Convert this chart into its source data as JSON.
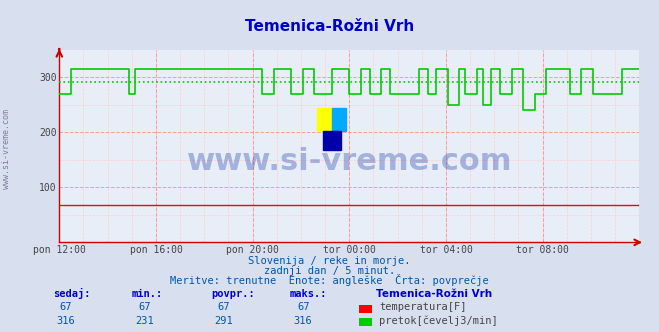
{
  "title": "Temenica-Rožni Vrh",
  "title_color": "#0000cc",
  "bg_color": "#d8e0f0",
  "plot_bg_color": "#e8eef8",
  "grid_color_major": "#ff9999",
  "grid_color_minor": "#ffcccc",
  "ylabel_color": "#444444",
  "xlabel_color": "#444444",
  "watermark_text": "www.si-vreme.com",
  "watermark_color": "#2244aa",
  "side_label": "www.si-vreme.com",
  "subtitle1": "Slovenija / reke in morje.",
  "subtitle2": "zadnji dan / 5 minut.",
  "subtitle3": "Meritve: trenutne  Enote: angleške  Črta: povprečje",
  "subtitle_color": "#0055aa",
  "x_tick_labels": [
    "pon 12:00",
    "pon 16:00",
    "pon 20:00",
    "tor 00:00",
    "tor 04:00",
    "tor 08:00"
  ],
  "x_tick_positions": [
    0.0,
    0.1667,
    0.3333,
    0.5,
    0.6667,
    0.8333
  ],
  "y_ticks": [
    0,
    100,
    200,
    300
  ],
  "ylim": [
    0,
    350
  ],
  "xlim": [
    0,
    1
  ],
  "temp_color": "#ff0000",
  "flow_color": "#00cc00",
  "avg_color_green": "#00cc00",
  "table_header_color": "#0000cc",
  "table_label_color": "#0055aa",
  "table_data_color": "#0055aa",
  "table_station": "Temenica-Rožni Vrh",
  "table_headers": [
    "sedaj:",
    "min.:",
    "povpr.:",
    "maks.:"
  ],
  "table_temp": [
    67,
    67,
    67,
    67
  ],
  "table_flow": [
    316,
    231,
    291,
    316
  ],
  "legend_temp": "temperatura[F]",
  "legend_flow": "pretok[čevelj3/min]",
  "avg_line_value": 291,
  "flow_data_x": [
    0,
    0.02,
    0.02,
    0.12,
    0.12,
    0.13,
    0.13,
    0.35,
    0.35,
    0.37,
    0.37,
    0.4,
    0.4,
    0.42,
    0.42,
    0.44,
    0.44,
    0.47,
    0.47,
    0.5,
    0.5,
    0.52,
    0.52,
    0.535,
    0.535,
    0.555,
    0.555,
    0.57,
    0.57,
    0.62,
    0.62,
    0.635,
    0.635,
    0.65,
    0.65,
    0.67,
    0.67,
    0.69,
    0.69,
    0.7,
    0.7,
    0.72,
    0.72,
    0.73,
    0.73,
    0.745,
    0.745,
    0.76,
    0.76,
    0.78,
    0.78,
    0.8,
    0.8,
    0.82,
    0.82,
    0.84,
    0.84,
    0.88,
    0.88,
    0.9,
    0.9,
    0.92,
    0.92,
    0.97,
    0.97,
    1.0
  ],
  "flow_data_y": [
    270,
    270,
    316,
    316,
    270,
    270,
    316,
    316,
    270,
    270,
    316,
    316,
    270,
    270,
    316,
    316,
    270,
    270,
    316,
    316,
    270,
    270,
    316,
    316,
    270,
    270,
    316,
    316,
    270,
    270,
    316,
    316,
    270,
    270,
    316,
    316,
    250,
    250,
    316,
    316,
    270,
    270,
    316,
    316,
    250,
    250,
    316,
    316,
    270,
    270,
    316,
    316,
    240,
    240,
    270,
    270,
    316,
    316,
    270,
    270,
    316,
    316,
    270,
    270,
    316,
    316
  ]
}
